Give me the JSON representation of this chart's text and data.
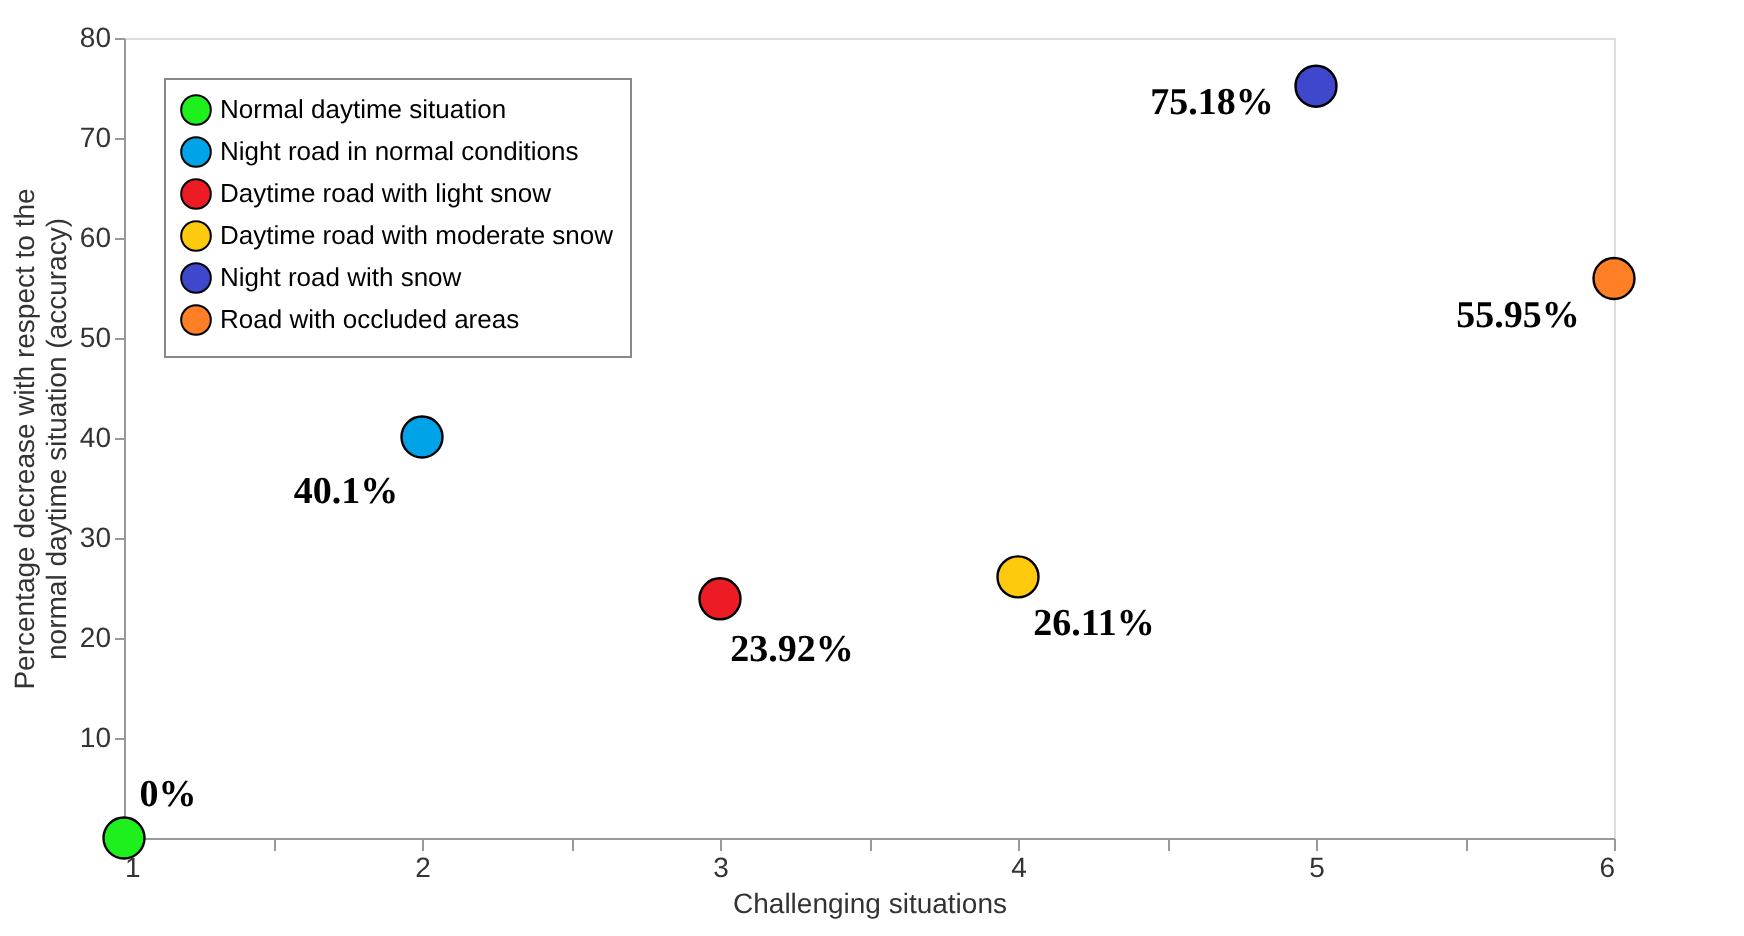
{
  "chart_data": {
    "type": "scatter",
    "xlabel": "Challenging situations",
    "ylabel": "Percentage decrease with respect to the\nnormal daytime situation (accuracy)",
    "xlim": [
      1,
      6
    ],
    "xticks": [
      1,
      {
        "value": 1.5,
        "label": null
      },
      2,
      {
        "value": 2.5,
        "label": null
      },
      3,
      {
        "value": 3.5,
        "label": null
      },
      4,
      {
        "value": 4.5,
        "label": null
      },
      5,
      {
        "value": 5.5,
        "label": null
      },
      6
    ],
    "ylim": [
      0,
      80
    ],
    "yticks": [
      10,
      20,
      30,
      40,
      50,
      60,
      70,
      80
    ],
    "grid": false,
    "legend": "top left",
    "marker": "circle",
    "series": [
      {
        "name": "Normal daytime situation",
        "color": "#1ef01e",
        "x": [
          1
        ],
        "values": [
          0
        ],
        "value_labels": [
          "0%"
        ]
      },
      {
        "name": "Night road in normal conditions",
        "color": "#00a2e8",
        "x": [
          2
        ],
        "values": [
          40.1
        ],
        "value_labels": [
          "40.1%"
        ]
      },
      {
        "name": "Daytime road with light snow",
        "color": "#ed1c24",
        "x": [
          3
        ],
        "values": [
          23.92
        ],
        "value_labels": [
          "23.92%"
        ]
      },
      {
        "name": "Daytime road with moderate snow",
        "color": "#ffc90e",
        "x": [
          4
        ],
        "values": [
          26.11
        ],
        "value_labels": [
          "26.11%"
        ]
      },
      {
        "name": "Night road with snow",
        "color": "#3f48cc",
        "x": [
          5
        ],
        "values": [
          75.18
        ],
        "value_labels": [
          "75.18%"
        ]
      },
      {
        "name": "Road with occluded areas",
        "color": "#ff7f27",
        "x": [
          6
        ],
        "values": [
          55.95
        ],
        "value_labels": [
          "55.95%"
        ]
      }
    ]
  }
}
